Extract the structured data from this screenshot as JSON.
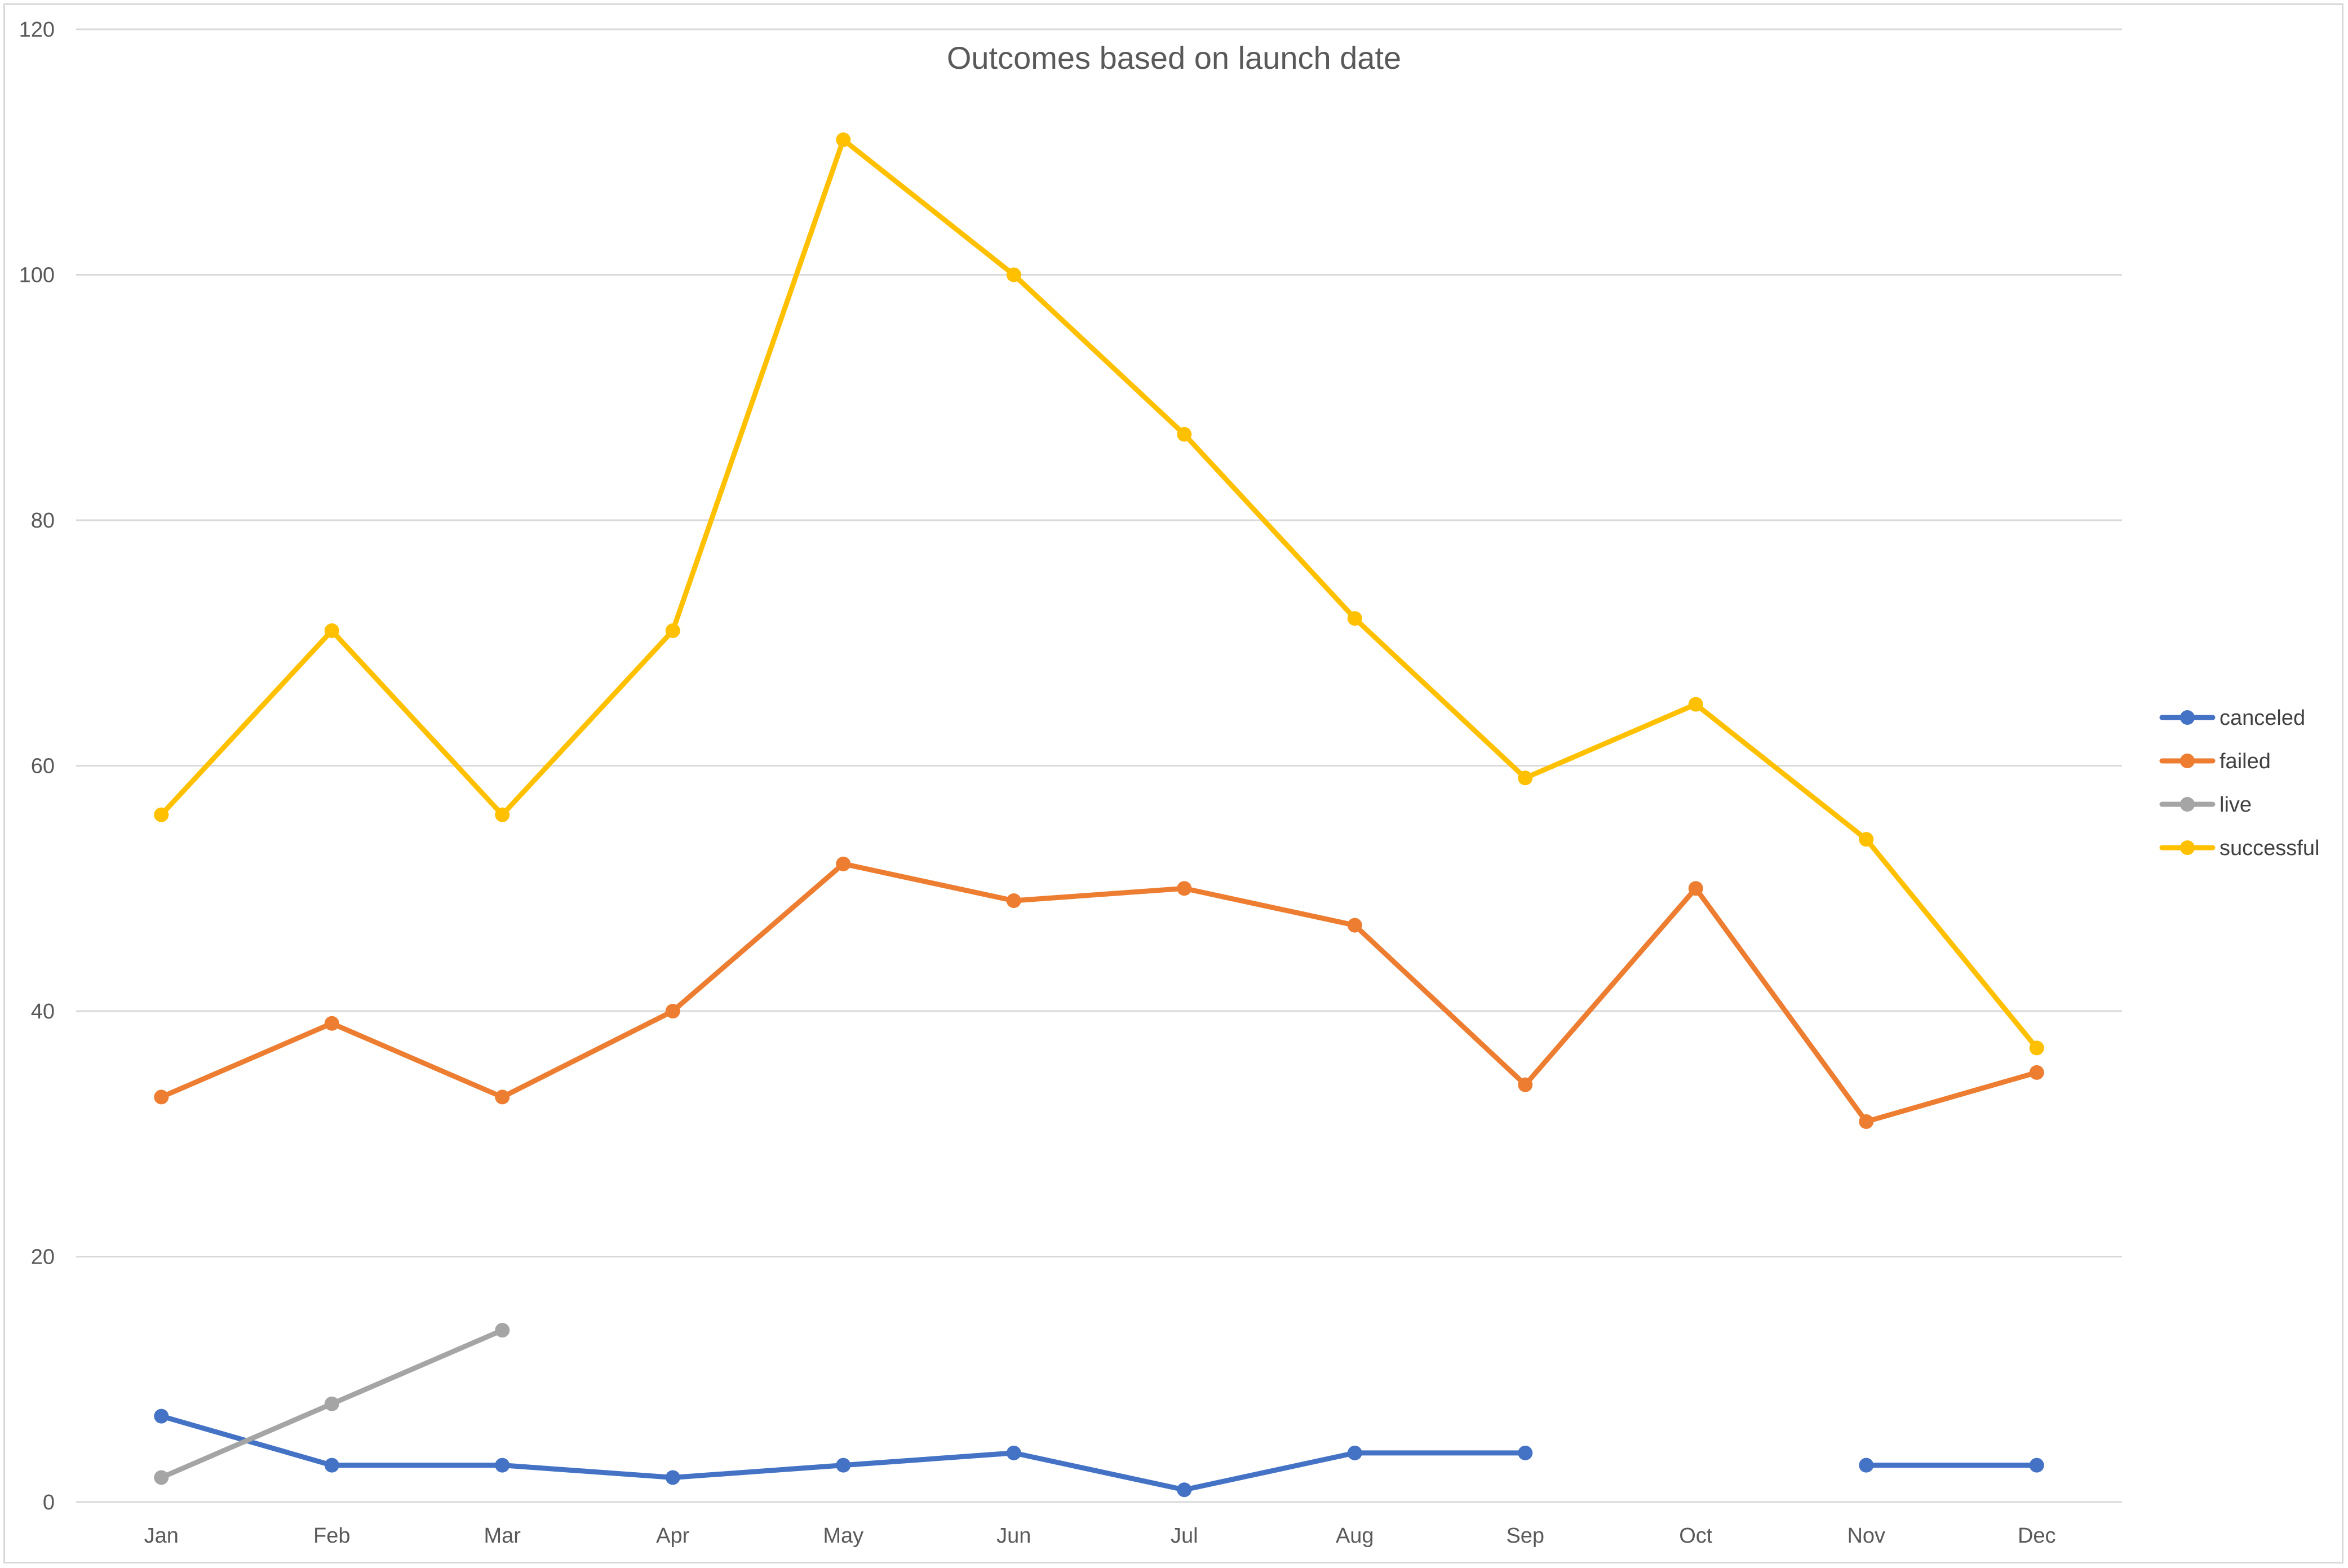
{
  "chart_data": {
    "type": "line",
    "title": "Outcomes based on launch date",
    "xlabel": "",
    "ylabel": "",
    "ylim": [
      0,
      120
    ],
    "yticks": [
      "0",
      "20",
      "40",
      "60",
      "80",
      "100",
      "120"
    ],
    "categories": [
      "Jan",
      "Feb",
      "Mar",
      "Apr",
      "May",
      "Jun",
      "Jul",
      "Aug",
      "Sep",
      "Oct",
      "Nov",
      "Dec"
    ],
    "grid": true,
    "legend_position": "right",
    "series": [
      {
        "name": "canceled",
        "color": "#4472c4",
        "values": [
          7,
          3,
          3,
          2,
          3,
          4,
          1,
          4,
          4,
          null,
          3,
          3
        ]
      },
      {
        "name": "failed",
        "color": "#ed7d31",
        "values": [
          33,
          39,
          33,
          40,
          52,
          49,
          50,
          47,
          34,
          50,
          31,
          35
        ]
      },
      {
        "name": "live",
        "color": "#a5a5a5",
        "values": [
          2,
          8,
          14,
          null,
          null,
          null,
          null,
          null,
          null,
          null,
          null,
          null
        ]
      },
      {
        "name": "successful",
        "color": "#ffc000",
        "values": [
          56,
          71,
          56,
          71,
          111,
          100,
          87,
          72,
          59,
          65,
          54,
          37
        ]
      }
    ]
  }
}
